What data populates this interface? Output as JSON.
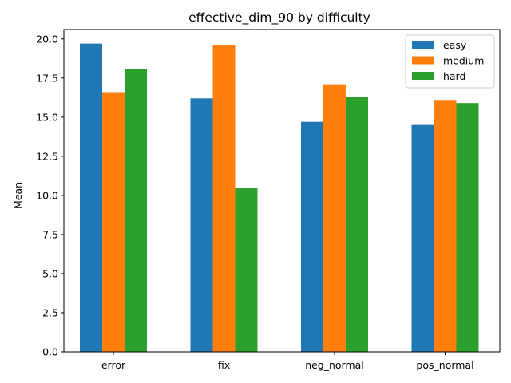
{
  "chart_data": {
    "type": "bar",
    "title": "effective_dim_90 by difficulty",
    "xlabel": "",
    "ylabel": "Mean",
    "categories": [
      "error",
      "fix",
      "neg_normal",
      "pos_normal"
    ],
    "series": [
      {
        "name": "easy",
        "color": "#1f77b4",
        "values": [
          19.7,
          16.2,
          14.7,
          14.5
        ]
      },
      {
        "name": "medium",
        "color": "#ff7f0e",
        "values": [
          16.6,
          19.6,
          17.1,
          16.1
        ]
      },
      {
        "name": "hard",
        "color": "#2ca02c",
        "values": [
          18.1,
          10.5,
          16.3,
          15.9
        ]
      }
    ],
    "ylim": [
      0,
      20.6
    ],
    "yticks": [
      "0.0",
      "2.5",
      "5.0",
      "7.5",
      "10.0",
      "12.5",
      "15.0",
      "17.5",
      "20.0"
    ],
    "grid": false,
    "legend_position": "top-right"
  }
}
